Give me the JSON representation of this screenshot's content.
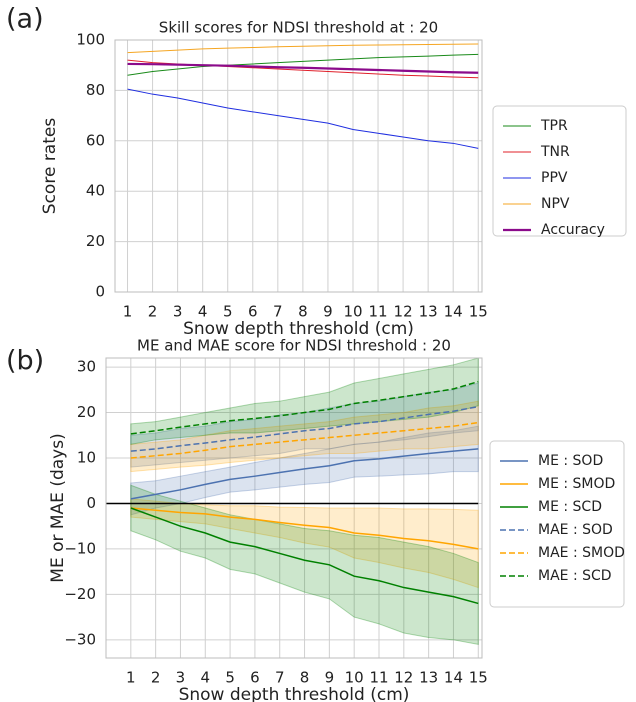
{
  "chart_data": [
    {
      "type": "line",
      "panel_label": "(a)",
      "title": "Skill scores for NDSI threshold at : 20",
      "xlabel": "Snow depth threshold (cm)",
      "ylabel": "Score rates",
      "x": [
        1,
        2,
        3,
        4,
        5,
        6,
        7,
        8,
        9,
        10,
        11,
        12,
        13,
        14,
        15
      ],
      "xlim": [
        0.5,
        15.15
      ],
      "ylim": [
        0,
        100
      ],
      "xticks": [
        1,
        2,
        3,
        4,
        5,
        6,
        7,
        8,
        9,
        10,
        11,
        12,
        13,
        14,
        15
      ],
      "yticks": [
        0,
        20,
        40,
        60,
        80,
        100
      ],
      "grid": true,
      "legend": "outside right",
      "series": [
        {
          "name": "TPR",
          "color": "#1a8a1a",
          "linewidth": 1,
          "values": [
            86,
            87.5,
            88.5,
            89.5,
            90,
            90.5,
            91,
            91.5,
            92,
            92.5,
            93,
            93.3,
            93.6,
            94,
            94.3
          ]
        },
        {
          "name": "TNR",
          "color": "#e0202a",
          "linewidth": 1,
          "values": [
            92,
            91,
            90.5,
            90,
            89.5,
            89,
            88.5,
            88,
            87.5,
            87,
            86.5,
            86,
            85.7,
            85.3,
            85
          ]
        },
        {
          "name": "PPV",
          "color": "#1f2ee0",
          "linewidth": 1,
          "values": [
            80.5,
            78.5,
            77,
            75,
            73,
            71.5,
            70,
            68.5,
            67,
            64.5,
            63,
            61.5,
            60,
            59,
            57
          ]
        },
        {
          "name": "NPV",
          "color": "#f5a623",
          "linewidth": 1,
          "values": [
            95,
            95.5,
            96,
            96.5,
            96.8,
            97,
            97.3,
            97.5,
            97.7,
            97.9,
            98,
            98.1,
            98.2,
            98.3,
            98.4
          ]
        },
        {
          "name": "Accuracy",
          "color": "#8b0a8b",
          "linewidth": 2.2,
          "values": [
            90.5,
            90.4,
            90.2,
            90,
            89.8,
            89.5,
            89.2,
            89,
            88.7,
            88.4,
            88.1,
            87.8,
            87.5,
            87.2,
            87
          ]
        }
      ]
    },
    {
      "type": "line",
      "panel_label": "(b)",
      "title": "ME and MAE score for NDSI threshold : 20",
      "xlabel": "Snow depth threshold (cm)",
      "ylabel": "ME or MAE (days)",
      "x": [
        1,
        2,
        3,
        4,
        5,
        6,
        7,
        8,
        9,
        10,
        11,
        12,
        13,
        14,
        15
      ],
      "xlim": [
        0,
        15.15
      ],
      "ylim": [
        -34,
        32
      ],
      "xticks": [
        1,
        2,
        3,
        4,
        5,
        6,
        7,
        8,
        9,
        10,
        11,
        12,
        13,
        14,
        15
      ],
      "yticks": [
        {
          "value": -30,
          "label": "−30"
        },
        {
          "value": -20,
          "label": "−20"
        },
        {
          "value": -10,
          "label": "−10"
        },
        0,
        10,
        20,
        30
      ],
      "grid": true,
      "legend": "outside right",
      "hline": {
        "y": 0,
        "x": [
          0,
          15
        ],
        "color": "#000000"
      },
      "series": [
        {
          "name": "ME : SOD",
          "color": "#4c72b0",
          "linestyle": "solid",
          "linewidth": 1.5,
          "values": [
            1,
            2,
            3,
            4.2,
            5.3,
            6,
            6.8,
            7.6,
            8.3,
            9.4,
            9.8,
            10.4,
            11,
            11.5,
            12
          ],
          "upper": [
            4.5,
            5,
            6,
            7,
            8,
            9,
            10,
            11,
            12,
            13,
            13.5,
            14.5,
            15.5,
            16,
            17
          ],
          "lower": [
            -2.5,
            -1,
            0,
            1.3,
            2.5,
            3,
            3.6,
            4.2,
            4.6,
            5.8,
            6,
            6.3,
            6.5,
            7,
            7
          ]
        },
        {
          "name": "ME : SMOD",
          "color": "#ffa500",
          "linestyle": "solid",
          "linewidth": 1.5,
          "values": [
            -1,
            -1.5,
            -2,
            -2.3,
            -3,
            -3.5,
            -4.2,
            -4.8,
            -5.3,
            -6.5,
            -7,
            -7.7,
            -8.2,
            -9,
            -10
          ],
          "upper": [
            1,
            0.5,
            0,
            -0.3,
            -0.5,
            -0.5,
            -0.8,
            -0.9,
            -1,
            -1,
            -1,
            -1.2,
            -1.2,
            -1.3,
            -1.5
          ],
          "lower": [
            -3,
            -3.5,
            -4,
            -4.5,
            -5.5,
            -6.5,
            -7.5,
            -8.7,
            -9.6,
            -12,
            -13,
            -14.2,
            -15.2,
            -16.7,
            -18.5
          ]
        },
        {
          "name": "ME : SCD",
          "color": "#008000",
          "linestyle": "solid",
          "linewidth": 1.5,
          "values": [
            -1,
            -3,
            -5,
            -6.5,
            -8.5,
            -9.5,
            -11,
            -12.5,
            -13.5,
            -16,
            -17,
            -18.5,
            -19.5,
            -20.5,
            -22
          ],
          "upper": [
            4,
            2,
            0.5,
            -1,
            -2.5,
            -3.5,
            -4.5,
            -5.5,
            -6,
            -7,
            -7.5,
            -8.5,
            -9.5,
            -11,
            -13
          ],
          "lower": [
            -6,
            -8,
            -10.5,
            -12,
            -14.5,
            -15.5,
            -17.5,
            -19.5,
            -21,
            -25,
            -26.5,
            -28.5,
            -29.5,
            -30,
            -31
          ]
        },
        {
          "name": "MAE : SOD",
          "color": "#4c72b0",
          "linestyle": "dashed",
          "linewidth": 1.5,
          "values": [
            11.5,
            12,
            12.7,
            13.3,
            14,
            14.6,
            15.3,
            16,
            16.5,
            17.5,
            18,
            18.8,
            19.6,
            20.3,
            21.3
          ],
          "upper": [
            15,
            15.5,
            16.5,
            17,
            18,
            18.5,
            19.5,
            20,
            21,
            22,
            22.5,
            23.5,
            24.5,
            25,
            26.5
          ],
          "lower": [
            8,
            8.5,
            9,
            9.5,
            10,
            10.5,
            11,
            12,
            12,
            13,
            13.5,
            14,
            14.7,
            15.5,
            16
          ]
        },
        {
          "name": "MAE : SMOD",
          "color": "#ffa500",
          "linestyle": "dashed",
          "linewidth": 1.5,
          "values": [
            10,
            10.5,
            11,
            11.7,
            12.5,
            13,
            13.5,
            14,
            14.5,
            15,
            15.5,
            16,
            16.5,
            17,
            17.8
          ],
          "upper": [
            13,
            13.5,
            14,
            15,
            16,
            16.5,
            17,
            17.5,
            18,
            19,
            19.5,
            20,
            21,
            21.5,
            22.5
          ],
          "lower": [
            7,
            7.5,
            8,
            8.4,
            9,
            9.5,
            10,
            10.5,
            11,
            11,
            11.5,
            12,
            12,
            12.5,
            13
          ]
        },
        {
          "name": "MAE : SCD",
          "color": "#008000",
          "linestyle": "dashed",
          "linewidth": 1.5,
          "values": [
            15.3,
            16,
            16.8,
            17.5,
            18.2,
            18.7,
            19.3,
            20,
            20.7,
            22,
            22.7,
            23.5,
            24.3,
            25.2,
            26.8
          ],
          "upper": [
            17.5,
            18,
            19,
            20,
            21,
            22,
            22.5,
            23.5,
            24.5,
            26.5,
            27.5,
            28.5,
            29.5,
            30.5,
            32
          ],
          "lower": [
            13,
            14,
            14.5,
            15,
            15.5,
            15.5,
            16,
            16.5,
            17,
            17.5,
            18,
            18.5,
            19,
            20,
            21.5
          ]
        }
      ]
    }
  ]
}
